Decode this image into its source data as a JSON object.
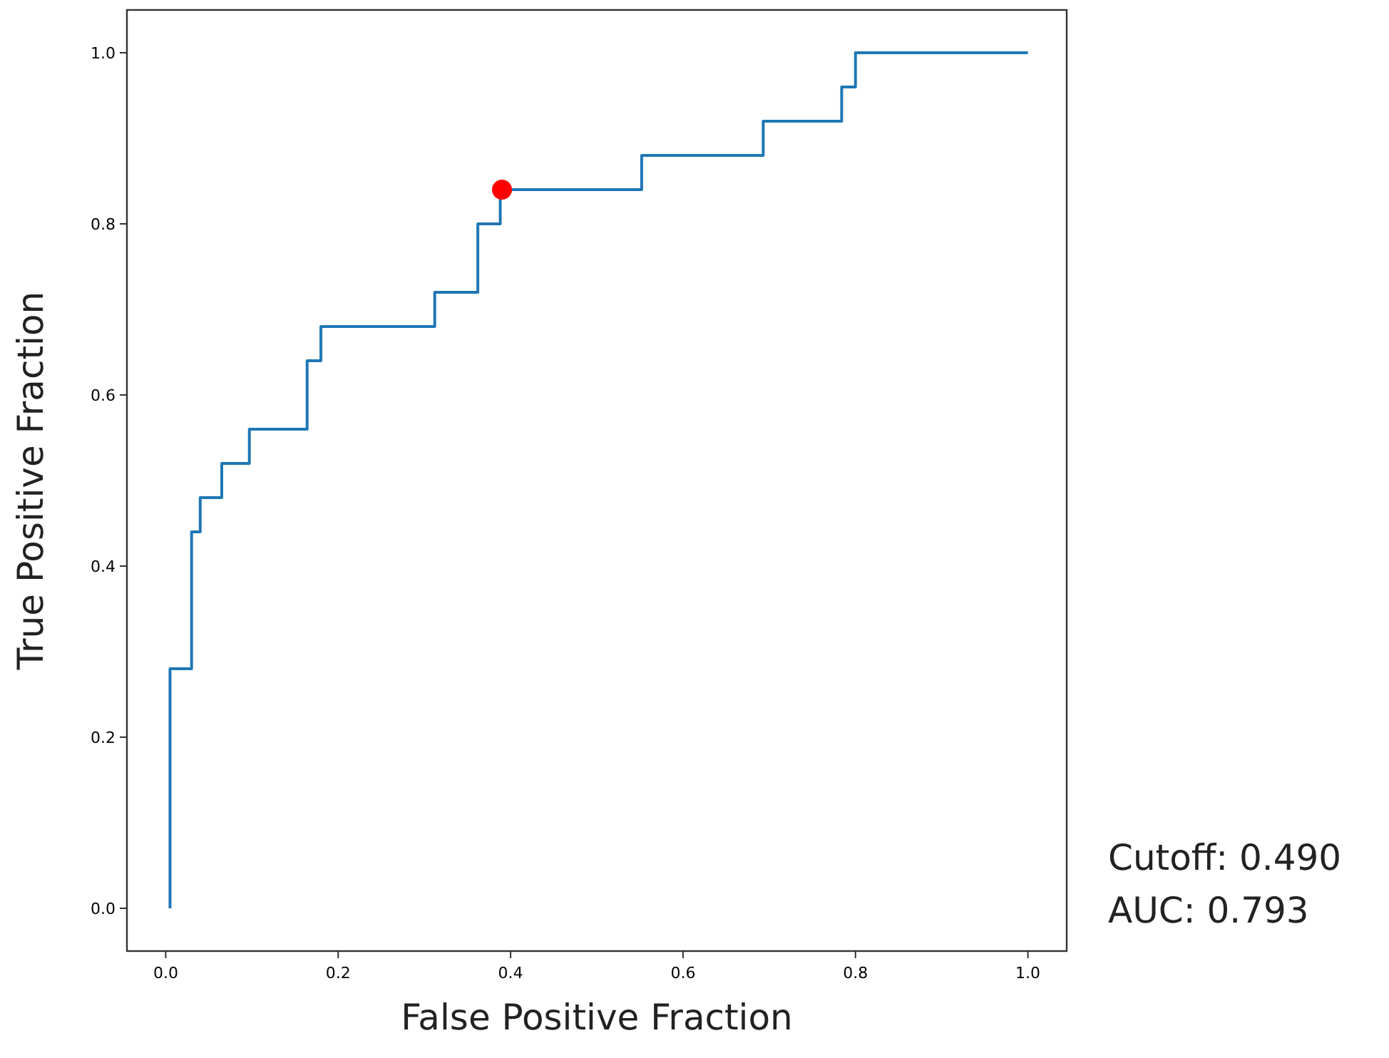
{
  "chart_data": {
    "type": "step",
    "xlabel": "False Positive Fraction",
    "ylabel": "True Positive Fraction",
    "xlim": [
      -0.045,
      1.045
    ],
    "ylim": [
      -0.05,
      1.05
    ],
    "xticks": [
      {
        "value": 0,
        "label": "0.0"
      },
      {
        "value": 0.2,
        "label": "0.2"
      },
      {
        "value": 0.4,
        "label": "0.4"
      },
      {
        "value": 0.6,
        "label": "0.6"
      },
      {
        "value": 0.8,
        "label": "0.8"
      },
      {
        "value": 1,
        "label": "1.0"
      }
    ],
    "yticks": [
      {
        "value": 0,
        "label": "0.0"
      },
      {
        "value": 0.2,
        "label": "0.2"
      },
      {
        "value": 0.4,
        "label": "0.4"
      },
      {
        "value": 0.6,
        "label": "0.6"
      },
      {
        "value": 0.8,
        "label": "0.8"
      },
      {
        "value": 1,
        "label": "1.0"
      }
    ],
    "grid": false,
    "series": [
      {
        "color": "#1f77b4",
        "x": [
          0.005,
          0.005,
          0.03,
          0.04,
          0.065,
          0.097,
          0.164,
          0.18,
          0.312,
          0.362,
          0.388,
          0.552,
          0.693,
          0.784,
          0.8,
          1.0
        ],
        "values": [
          0,
          0.28,
          0.44,
          0.48,
          0.52,
          0.56,
          0.64,
          0.68,
          0.72,
          0.8,
          0.84,
          0.88,
          0.92,
          0.96,
          1.0,
          1.0
        ]
      },
      {
        "type": "scatter",
        "color": "#ff0000",
        "marker": "circle",
        "x": [
          0.39
        ],
        "values": [
          0.84
        ]
      }
    ],
    "annotations": [
      "Cutoff: 0.490",
      "AUC: 0.793"
    ]
  }
}
